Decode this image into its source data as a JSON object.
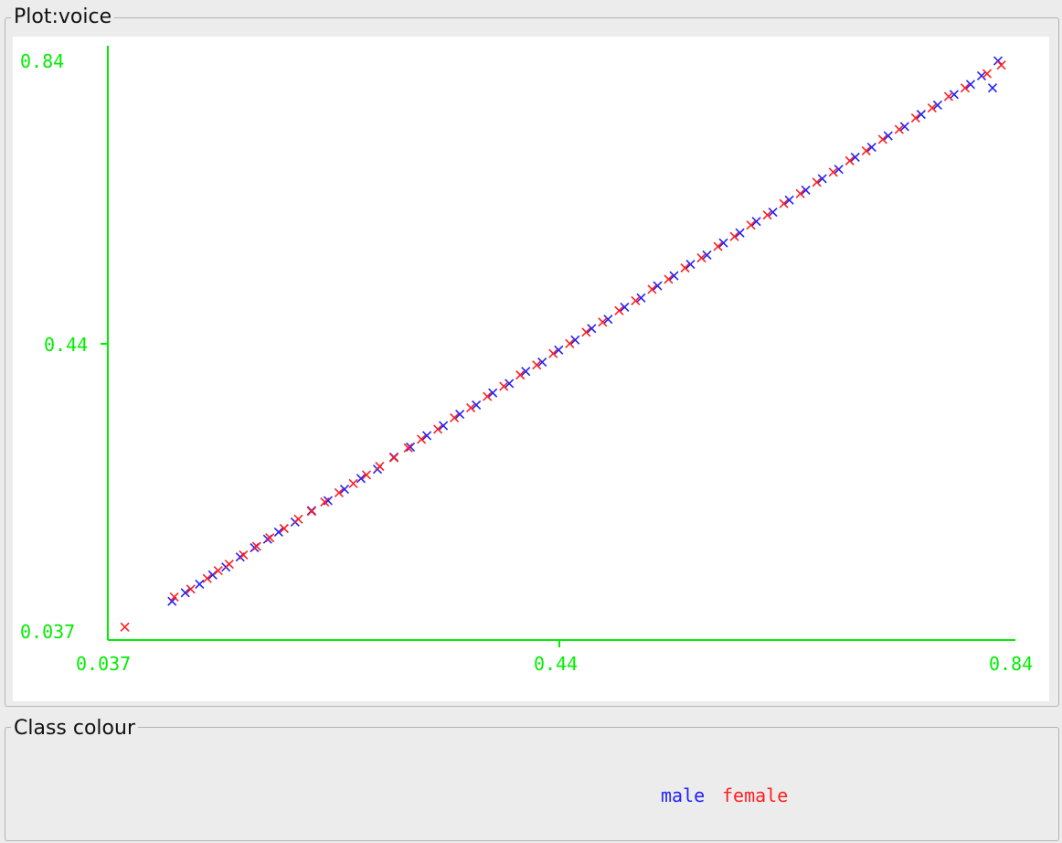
{
  "window": {
    "plot_title": "Plot:voice",
    "class_panel_title": "Class colour"
  },
  "legend": {
    "male_label": "male",
    "female_label": "female"
  },
  "colors": {
    "axis": "#00ee00",
    "male": "#2121ff",
    "female": "#ff1f1f",
    "plot_background": "#ffffff",
    "panel_background": "#ececec"
  },
  "chart_data": {
    "type": "scatter",
    "title": "",
    "xlabel": "",
    "ylabel": "",
    "xlim": [
      0.037,
      0.84
    ],
    "ylim": [
      0.037,
      0.84
    ],
    "x_ticks": [
      "0.037",
      "0.44",
      "0.84"
    ],
    "y_ticks": [
      "0.037",
      "0.44",
      "0.84"
    ],
    "marker": "x",
    "legend_position": "bottom-panel",
    "series": [
      {
        "name": "male",
        "color": "#2121ff",
        "points": [
          [
            0.083,
            0.081
          ],
          [
            0.095,
            0.093
          ],
          [
            0.108,
            0.105
          ],
          [
            0.12,
            0.118
          ],
          [
            0.132,
            0.129
          ],
          [
            0.145,
            0.143
          ],
          [
            0.158,
            0.156
          ],
          [
            0.17,
            0.168
          ],
          [
            0.18,
            0.178
          ],
          [
            0.195,
            0.192
          ],
          [
            0.21,
            0.208
          ],
          [
            0.225,
            0.222
          ],
          [
            0.24,
            0.238
          ],
          [
            0.255,
            0.253
          ],
          [
            0.27,
            0.266
          ],
          [
            0.285,
            0.283
          ],
          [
            0.3,
            0.297
          ],
          [
            0.315,
            0.313
          ],
          [
            0.33,
            0.327
          ],
          [
            0.345,
            0.343
          ],
          [
            0.36,
            0.356
          ],
          [
            0.375,
            0.373
          ],
          [
            0.39,
            0.386
          ],
          [
            0.405,
            0.403
          ],
          [
            0.42,
            0.416
          ],
          [
            0.435,
            0.433
          ],
          [
            0.45,
            0.447
          ],
          [
            0.465,
            0.463
          ],
          [
            0.48,
            0.476
          ],
          [
            0.495,
            0.493
          ],
          [
            0.51,
            0.506
          ],
          [
            0.525,
            0.523
          ],
          [
            0.54,
            0.537
          ],
          [
            0.555,
            0.553
          ],
          [
            0.57,
            0.566
          ],
          [
            0.585,
            0.583
          ],
          [
            0.6,
            0.597
          ],
          [
            0.615,
            0.613
          ],
          [
            0.63,
            0.626
          ],
          [
            0.645,
            0.643
          ],
          [
            0.66,
            0.657
          ],
          [
            0.675,
            0.673
          ],
          [
            0.69,
            0.686
          ],
          [
            0.705,
            0.703
          ],
          [
            0.72,
            0.717
          ],
          [
            0.735,
            0.733
          ],
          [
            0.75,
            0.746
          ],
          [
            0.765,
            0.763
          ],
          [
            0.78,
            0.776
          ],
          [
            0.795,
            0.791
          ],
          [
            0.81,
            0.805
          ],
          [
            0.82,
            0.817
          ],
          [
            0.835,
            0.838
          ],
          [
            0.83,
            0.8
          ]
        ]
      },
      {
        "name": "female",
        "color": "#ff1f1f",
        "points": [
          [
            0.04,
            0.045
          ],
          [
            0.085,
            0.087
          ],
          [
            0.1,
            0.098
          ],
          [
            0.115,
            0.113
          ],
          [
            0.125,
            0.124
          ],
          [
            0.135,
            0.133
          ],
          [
            0.148,
            0.146
          ],
          [
            0.16,
            0.158
          ],
          [
            0.172,
            0.17
          ],
          [
            0.185,
            0.183
          ],
          [
            0.198,
            0.196
          ],
          [
            0.21,
            0.207
          ],
          [
            0.222,
            0.22
          ],
          [
            0.235,
            0.233
          ],
          [
            0.248,
            0.246
          ],
          [
            0.26,
            0.258
          ],
          [
            0.272,
            0.27
          ],
          [
            0.285,
            0.282
          ],
          [
            0.298,
            0.296
          ],
          [
            0.31,
            0.308
          ],
          [
            0.325,
            0.322
          ],
          [
            0.34,
            0.338
          ],
          [
            0.355,
            0.352
          ],
          [
            0.37,
            0.368
          ],
          [
            0.385,
            0.382
          ],
          [
            0.4,
            0.398
          ],
          [
            0.415,
            0.412
          ],
          [
            0.43,
            0.428
          ],
          [
            0.445,
            0.442
          ],
          [
            0.46,
            0.458
          ],
          [
            0.475,
            0.472
          ],
          [
            0.49,
            0.488
          ],
          [
            0.505,
            0.502
          ],
          [
            0.52,
            0.518
          ],
          [
            0.535,
            0.532
          ],
          [
            0.55,
            0.548
          ],
          [
            0.565,
            0.562
          ],
          [
            0.58,
            0.578
          ],
          [
            0.595,
            0.592
          ],
          [
            0.61,
            0.608
          ],
          [
            0.625,
            0.622
          ],
          [
            0.64,
            0.638
          ],
          [
            0.655,
            0.652
          ],
          [
            0.67,
            0.668
          ],
          [
            0.685,
            0.682
          ],
          [
            0.7,
            0.698
          ],
          [
            0.715,
            0.712
          ],
          [
            0.73,
            0.728
          ],
          [
            0.745,
            0.742
          ],
          [
            0.76,
            0.758
          ],
          [
            0.775,
            0.772
          ],
          [
            0.79,
            0.788
          ],
          [
            0.805,
            0.8
          ],
          [
            0.825,
            0.82
          ],
          [
            0.838,
            0.832
          ]
        ]
      }
    ]
  }
}
